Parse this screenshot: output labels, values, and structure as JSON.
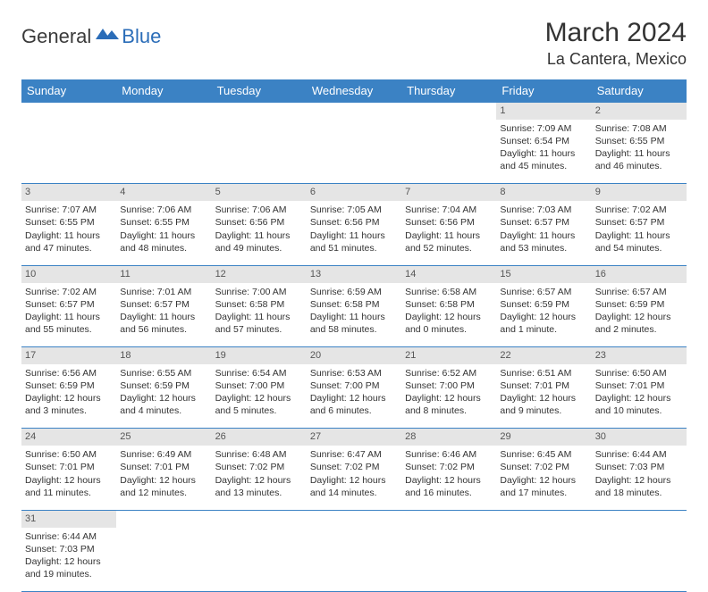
{
  "brand": {
    "general": "General",
    "blue": "Blue"
  },
  "title": "March 2024",
  "location": "La Cantera, Mexico",
  "colors": {
    "header_bg": "#3b82c4",
    "header_fg": "#ffffff",
    "daynum_bg": "#e5e5e5",
    "border": "#3b82c4",
    "text": "#333333"
  },
  "day_headers": [
    "Sunday",
    "Monday",
    "Tuesday",
    "Wednesday",
    "Thursday",
    "Friday",
    "Saturday"
  ],
  "weeks": [
    {
      "nums": [
        "",
        "",
        "",
        "",
        "",
        "1",
        "2"
      ],
      "cells": [
        null,
        null,
        null,
        null,
        null,
        {
          "sunrise": "Sunrise: 7:09 AM",
          "sunset": "Sunset: 6:54 PM",
          "day1": "Daylight: 11 hours",
          "day2": "and 45 minutes."
        },
        {
          "sunrise": "Sunrise: 7:08 AM",
          "sunset": "Sunset: 6:55 PM",
          "day1": "Daylight: 11 hours",
          "day2": "and 46 minutes."
        }
      ]
    },
    {
      "nums": [
        "3",
        "4",
        "5",
        "6",
        "7",
        "8",
        "9"
      ],
      "cells": [
        {
          "sunrise": "Sunrise: 7:07 AM",
          "sunset": "Sunset: 6:55 PM",
          "day1": "Daylight: 11 hours",
          "day2": "and 47 minutes."
        },
        {
          "sunrise": "Sunrise: 7:06 AM",
          "sunset": "Sunset: 6:55 PM",
          "day1": "Daylight: 11 hours",
          "day2": "and 48 minutes."
        },
        {
          "sunrise": "Sunrise: 7:06 AM",
          "sunset": "Sunset: 6:56 PM",
          "day1": "Daylight: 11 hours",
          "day2": "and 49 minutes."
        },
        {
          "sunrise": "Sunrise: 7:05 AM",
          "sunset": "Sunset: 6:56 PM",
          "day1": "Daylight: 11 hours",
          "day2": "and 51 minutes."
        },
        {
          "sunrise": "Sunrise: 7:04 AM",
          "sunset": "Sunset: 6:56 PM",
          "day1": "Daylight: 11 hours",
          "day2": "and 52 minutes."
        },
        {
          "sunrise": "Sunrise: 7:03 AM",
          "sunset": "Sunset: 6:57 PM",
          "day1": "Daylight: 11 hours",
          "day2": "and 53 minutes."
        },
        {
          "sunrise": "Sunrise: 7:02 AM",
          "sunset": "Sunset: 6:57 PM",
          "day1": "Daylight: 11 hours",
          "day2": "and 54 minutes."
        }
      ]
    },
    {
      "nums": [
        "10",
        "11",
        "12",
        "13",
        "14",
        "15",
        "16"
      ],
      "cells": [
        {
          "sunrise": "Sunrise: 7:02 AM",
          "sunset": "Sunset: 6:57 PM",
          "day1": "Daylight: 11 hours",
          "day2": "and 55 minutes."
        },
        {
          "sunrise": "Sunrise: 7:01 AM",
          "sunset": "Sunset: 6:57 PM",
          "day1": "Daylight: 11 hours",
          "day2": "and 56 minutes."
        },
        {
          "sunrise": "Sunrise: 7:00 AM",
          "sunset": "Sunset: 6:58 PM",
          "day1": "Daylight: 11 hours",
          "day2": "and 57 minutes."
        },
        {
          "sunrise": "Sunrise: 6:59 AM",
          "sunset": "Sunset: 6:58 PM",
          "day1": "Daylight: 11 hours",
          "day2": "and 58 minutes."
        },
        {
          "sunrise": "Sunrise: 6:58 AM",
          "sunset": "Sunset: 6:58 PM",
          "day1": "Daylight: 12 hours",
          "day2": "and 0 minutes."
        },
        {
          "sunrise": "Sunrise: 6:57 AM",
          "sunset": "Sunset: 6:59 PM",
          "day1": "Daylight: 12 hours",
          "day2": "and 1 minute."
        },
        {
          "sunrise": "Sunrise: 6:57 AM",
          "sunset": "Sunset: 6:59 PM",
          "day1": "Daylight: 12 hours",
          "day2": "and 2 minutes."
        }
      ]
    },
    {
      "nums": [
        "17",
        "18",
        "19",
        "20",
        "21",
        "22",
        "23"
      ],
      "cells": [
        {
          "sunrise": "Sunrise: 6:56 AM",
          "sunset": "Sunset: 6:59 PM",
          "day1": "Daylight: 12 hours",
          "day2": "and 3 minutes."
        },
        {
          "sunrise": "Sunrise: 6:55 AM",
          "sunset": "Sunset: 6:59 PM",
          "day1": "Daylight: 12 hours",
          "day2": "and 4 minutes."
        },
        {
          "sunrise": "Sunrise: 6:54 AM",
          "sunset": "Sunset: 7:00 PM",
          "day1": "Daylight: 12 hours",
          "day2": "and 5 minutes."
        },
        {
          "sunrise": "Sunrise: 6:53 AM",
          "sunset": "Sunset: 7:00 PM",
          "day1": "Daylight: 12 hours",
          "day2": "and 6 minutes."
        },
        {
          "sunrise": "Sunrise: 6:52 AM",
          "sunset": "Sunset: 7:00 PM",
          "day1": "Daylight: 12 hours",
          "day2": "and 8 minutes."
        },
        {
          "sunrise": "Sunrise: 6:51 AM",
          "sunset": "Sunset: 7:01 PM",
          "day1": "Daylight: 12 hours",
          "day2": "and 9 minutes."
        },
        {
          "sunrise": "Sunrise: 6:50 AM",
          "sunset": "Sunset: 7:01 PM",
          "day1": "Daylight: 12 hours",
          "day2": "and 10 minutes."
        }
      ]
    },
    {
      "nums": [
        "24",
        "25",
        "26",
        "27",
        "28",
        "29",
        "30"
      ],
      "cells": [
        {
          "sunrise": "Sunrise: 6:50 AM",
          "sunset": "Sunset: 7:01 PM",
          "day1": "Daylight: 12 hours",
          "day2": "and 11 minutes."
        },
        {
          "sunrise": "Sunrise: 6:49 AM",
          "sunset": "Sunset: 7:01 PM",
          "day1": "Daylight: 12 hours",
          "day2": "and 12 minutes."
        },
        {
          "sunrise": "Sunrise: 6:48 AM",
          "sunset": "Sunset: 7:02 PM",
          "day1": "Daylight: 12 hours",
          "day2": "and 13 minutes."
        },
        {
          "sunrise": "Sunrise: 6:47 AM",
          "sunset": "Sunset: 7:02 PM",
          "day1": "Daylight: 12 hours",
          "day2": "and 14 minutes."
        },
        {
          "sunrise": "Sunrise: 6:46 AM",
          "sunset": "Sunset: 7:02 PM",
          "day1": "Daylight: 12 hours",
          "day2": "and 16 minutes."
        },
        {
          "sunrise": "Sunrise: 6:45 AM",
          "sunset": "Sunset: 7:02 PM",
          "day1": "Daylight: 12 hours",
          "day2": "and 17 minutes."
        },
        {
          "sunrise": "Sunrise: 6:44 AM",
          "sunset": "Sunset: 7:03 PM",
          "day1": "Daylight: 12 hours",
          "day2": "and 18 minutes."
        }
      ]
    },
    {
      "nums": [
        "31",
        "",
        "",
        "",
        "",
        "",
        ""
      ],
      "cells": [
        {
          "sunrise": "Sunrise: 6:44 AM",
          "sunset": "Sunset: 7:03 PM",
          "day1": "Daylight: 12 hours",
          "day2": "and 19 minutes."
        },
        null,
        null,
        null,
        null,
        null,
        null
      ]
    }
  ]
}
